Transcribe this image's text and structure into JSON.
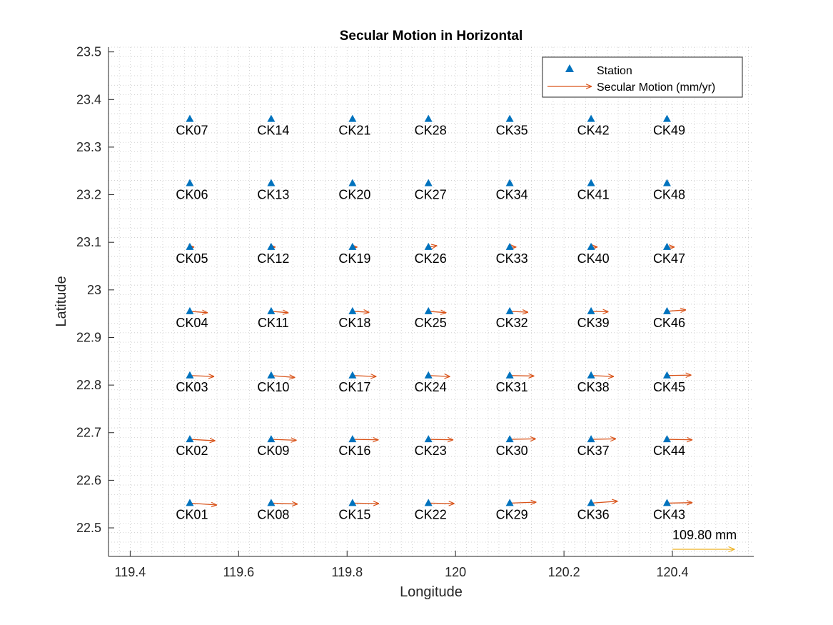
{
  "chart_data": {
    "type": "scatter",
    "title": "Secular Motion in Horizontal",
    "xlabel": "Longitude",
    "ylabel": "Latitude",
    "xlim": [
      119.36,
      120.55
    ],
    "ylim": [
      22.44,
      23.51
    ],
    "xticks": [
      119.4,
      119.6,
      119.8,
      120,
      120.2,
      120.4
    ],
    "xtick_labels": [
      "119.4",
      "119.6",
      "119.8",
      "120",
      "120.2",
      "120.4"
    ],
    "yticks": [
      22.5,
      22.6,
      22.7,
      22.8,
      22.9,
      23,
      23.1,
      23.2,
      23.3,
      23.4,
      23.5
    ],
    "ytick_labels": [
      "22.5",
      "22.6",
      "22.7",
      "22.8",
      "22.9",
      "23",
      "23.1",
      "23.2",
      "23.3",
      "23.4",
      "23.5"
    ],
    "grid": "minor dotted",
    "legend": {
      "placement": "top-right",
      "entries": [
        {
          "label": "Station",
          "marker": "triangle",
          "color": "#0072BD"
        },
        {
          "label": "Secular Motion (mm/yr)",
          "marker": "arrow",
          "color": "#D95319"
        }
      ]
    },
    "colors": {
      "station": "#0072BD",
      "motion": "#D95319",
      "scale": "#EDB120"
    },
    "vector_scale": {
      "label": "109.80 mm",
      "x": 120.4,
      "y": 22.455,
      "dx": 0.115,
      "dy": 0.0
    },
    "stations": [
      {
        "name": "CK01",
        "lon": 119.51,
        "lat": 22.552,
        "dx": 0.05,
        "dy": -0.004
      },
      {
        "name": "CK02",
        "lon": 119.51,
        "lat": 22.686,
        "dx": 0.047,
        "dy": -0.003
      },
      {
        "name": "CK03",
        "lon": 119.51,
        "lat": 22.82,
        "dx": 0.045,
        "dy": -0.002
      },
      {
        "name": "CK04",
        "lon": 119.51,
        "lat": 22.955,
        "dx": 0.033,
        "dy": -0.003
      },
      {
        "name": "CK05",
        "lon": 119.51,
        "lat": 23.09,
        "dx": 0.008,
        "dy": 0.0
      },
      {
        "name": "CK06",
        "lon": 119.51,
        "lat": 23.224,
        "dx": 0.0,
        "dy": 0.0
      },
      {
        "name": "CK07",
        "lon": 119.51,
        "lat": 23.359,
        "dx": 0.0,
        "dy": 0.0
      },
      {
        "name": "CK08",
        "lon": 119.66,
        "lat": 22.552,
        "dx": 0.049,
        "dy": -0.002
      },
      {
        "name": "CK09",
        "lon": 119.66,
        "lat": 22.686,
        "dx": 0.047,
        "dy": -0.002
      },
      {
        "name": "CK10",
        "lon": 119.66,
        "lat": 22.82,
        "dx": 0.044,
        "dy": -0.004
      },
      {
        "name": "CK11",
        "lon": 119.66,
        "lat": 22.955,
        "dx": 0.032,
        "dy": -0.003
      },
      {
        "name": "CK12",
        "lon": 119.66,
        "lat": 23.09,
        "dx": 0.008,
        "dy": 0.0
      },
      {
        "name": "CK13",
        "lon": 119.66,
        "lat": 23.224,
        "dx": 0.0,
        "dy": 0.0
      },
      {
        "name": "CK14",
        "lon": 119.66,
        "lat": 23.359,
        "dx": 0.0,
        "dy": 0.0
      },
      {
        "name": "CK15",
        "lon": 119.81,
        "lat": 22.552,
        "dx": 0.049,
        "dy": -0.001
      },
      {
        "name": "CK16",
        "lon": 119.81,
        "lat": 22.686,
        "dx": 0.048,
        "dy": -0.001
      },
      {
        "name": "CK17",
        "lon": 119.81,
        "lat": 22.82,
        "dx": 0.044,
        "dy": -0.002
      },
      {
        "name": "CK18",
        "lon": 119.81,
        "lat": 22.955,
        "dx": 0.031,
        "dy": -0.002
      },
      {
        "name": "CK19",
        "lon": 119.81,
        "lat": 23.09,
        "dx": 0.009,
        "dy": 0.0
      },
      {
        "name": "CK20",
        "lon": 119.81,
        "lat": 23.224,
        "dx": 0.0,
        "dy": 0.0
      },
      {
        "name": "CK21",
        "lon": 119.81,
        "lat": 23.359,
        "dx": 0.0,
        "dy": 0.0
      },
      {
        "name": "CK22",
        "lon": 119.95,
        "lat": 22.552,
        "dx": 0.048,
        "dy": -0.001
      },
      {
        "name": "CK23",
        "lon": 119.95,
        "lat": 22.686,
        "dx": 0.046,
        "dy": -0.001
      },
      {
        "name": "CK24",
        "lon": 119.95,
        "lat": 22.82,
        "dx": 0.04,
        "dy": -0.002
      },
      {
        "name": "CK25",
        "lon": 119.95,
        "lat": 22.955,
        "dx": 0.033,
        "dy": -0.003
      },
      {
        "name": "CK26",
        "lon": 119.95,
        "lat": 23.09,
        "dx": 0.016,
        "dy": 0.003
      },
      {
        "name": "CK27",
        "lon": 119.95,
        "lat": 23.224,
        "dx": 0.0,
        "dy": 0.0
      },
      {
        "name": "CK28",
        "lon": 119.95,
        "lat": 23.359,
        "dx": 0.0,
        "dy": 0.0
      },
      {
        "name": "CK29",
        "lon": 120.1,
        "lat": 22.552,
        "dx": 0.049,
        "dy": 0.002
      },
      {
        "name": "CK30",
        "lon": 120.1,
        "lat": 22.686,
        "dx": 0.048,
        "dy": 0.001
      },
      {
        "name": "CK31",
        "lon": 120.1,
        "lat": 22.82,
        "dx": 0.045,
        "dy": -0.001
      },
      {
        "name": "CK32",
        "lon": 120.1,
        "lat": 22.955,
        "dx": 0.034,
        "dy": -0.002
      },
      {
        "name": "CK33",
        "lon": 120.1,
        "lat": 23.09,
        "dx": 0.012,
        "dy": 0.0
      },
      {
        "name": "CK34",
        "lon": 120.1,
        "lat": 23.224,
        "dx": 0.0,
        "dy": 0.0
      },
      {
        "name": "CK35",
        "lon": 120.1,
        "lat": 23.359,
        "dx": 0.0,
        "dy": 0.0
      },
      {
        "name": "CK36",
        "lon": 120.25,
        "lat": 22.552,
        "dx": 0.049,
        "dy": 0.004
      },
      {
        "name": "CK37",
        "lon": 120.25,
        "lat": 22.686,
        "dx": 0.046,
        "dy": 0.001
      },
      {
        "name": "CK38",
        "lon": 120.25,
        "lat": 22.82,
        "dx": 0.042,
        "dy": -0.002
      },
      {
        "name": "CK39",
        "lon": 120.25,
        "lat": 22.955,
        "dx": 0.032,
        "dy": -0.001
      },
      {
        "name": "CK40",
        "lon": 120.25,
        "lat": 23.09,
        "dx": 0.012,
        "dy": 0.0
      },
      {
        "name": "CK41",
        "lon": 120.25,
        "lat": 23.224,
        "dx": 0.0,
        "dy": 0.0
      },
      {
        "name": "CK42",
        "lon": 120.25,
        "lat": 23.359,
        "dx": 0.0,
        "dy": 0.0
      },
      {
        "name": "CK43",
        "lon": 120.39,
        "lat": 22.552,
        "dx": 0.047,
        "dy": 0.001
      },
      {
        "name": "CK44",
        "lon": 120.39,
        "lat": 22.686,
        "dx": 0.047,
        "dy": -0.001
      },
      {
        "name": "CK45",
        "lon": 120.39,
        "lat": 22.82,
        "dx": 0.045,
        "dy": 0.001
      },
      {
        "name": "CK46",
        "lon": 120.39,
        "lat": 22.955,
        "dx": 0.035,
        "dy": 0.003
      },
      {
        "name": "CK47",
        "lon": 120.39,
        "lat": 23.09,
        "dx": 0.014,
        "dy": 0.0
      },
      {
        "name": "CK48",
        "lon": 120.39,
        "lat": 23.224,
        "dx": 0.0,
        "dy": 0.0
      },
      {
        "name": "CK49",
        "lon": 120.39,
        "lat": 23.359,
        "dx": 0.0,
        "dy": 0.0
      }
    ]
  }
}
